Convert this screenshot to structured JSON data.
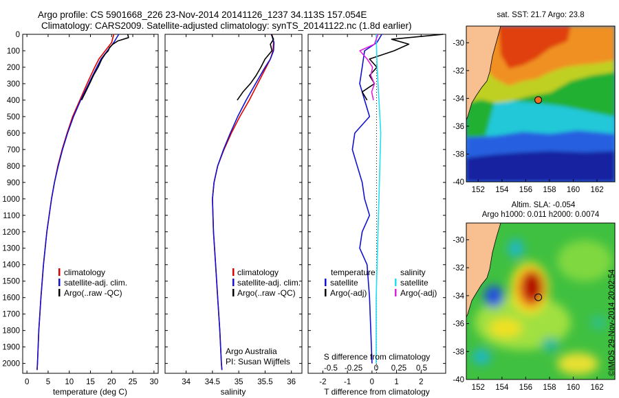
{
  "header": {
    "line1": "Argo profile: CS 5901668_226 23-Nov-2014 20141126_1237 34.113S 157.054E",
    "line2": "Climatology: CARS2009. Satellite-adjusted climatology: synTS_20141122.nc (1.8d earlier)"
  },
  "colors": {
    "climatology": "#e00000",
    "satellite": "#1010d0",
    "argo": "#000000",
    "sal_satellite": "#20e0f0",
    "sal_argo": "#e020e0",
    "land": "#f8c090"
  },
  "chart_data": [
    {
      "type": "line",
      "name": "temperature",
      "xlabel": "temperature (deg C)",
      "ylim": [
        0,
        2060
      ],
      "xlim": [
        -1,
        31
      ],
      "xticks": [
        0,
        5,
        10,
        15,
        20,
        25,
        30
      ],
      "yticks": [
        0,
        100,
        200,
        300,
        400,
        500,
        600,
        700,
        800,
        900,
        1000,
        1100,
        1200,
        1300,
        1400,
        1500,
        1600,
        1700,
        1800,
        1900,
        2000
      ],
      "legend": {
        "position": "lower-center",
        "entries": [
          "climatology",
          "satellite-adj. clim.",
          "Argo(..raw -QC)"
        ]
      },
      "series": [
        {
          "name": "climatology",
          "color": "#e00000",
          "depth": [
            0,
            50,
            100,
            150,
            200,
            300,
            400,
            500,
            600,
            700,
            800,
            900,
            1000,
            1200,
            1400,
            1600,
            1800,
            2000,
            2040
          ],
          "values": [
            20.5,
            20.0,
            18.5,
            17.0,
            16.0,
            14.2,
            12.5,
            10.8,
            9.5,
            8.3,
            7.3,
            6.5,
            5.8,
            4.7,
            3.9,
            3.3,
            2.8,
            2.5,
            2.4
          ]
        },
        {
          "name": "satellite-adj. clim.",
          "color": "#1010d0",
          "depth": [
            0,
            50,
            100,
            150,
            200,
            300,
            400,
            500,
            600,
            700,
            800,
            900,
            1000,
            1200,
            1400,
            1600,
            1800,
            2000,
            2040
          ],
          "values": [
            21.7,
            20.5,
            19.0,
            17.5,
            16.5,
            14.6,
            12.7,
            11.0,
            9.6,
            8.4,
            7.4,
            6.5,
            5.8,
            4.7,
            3.9,
            3.3,
            2.8,
            2.5,
            2.4
          ]
        },
        {
          "name": "Argo(..raw -QC)",
          "color": "#000000",
          "depth": [
            0,
            20,
            40,
            60,
            80,
            100,
            120,
            150,
            200,
            250,
            300,
            400
          ],
          "values": [
            23.8,
            24.0,
            21.5,
            20.3,
            19.5,
            19.2,
            18.5,
            17.7,
            16.8,
            15.7,
            14.8,
            12.9
          ]
        }
      ]
    },
    {
      "type": "line",
      "name": "salinity",
      "xlabel": "salinity",
      "ylim": [
        0,
        2060
      ],
      "xlim": [
        33.6,
        36.2
      ],
      "xticks": [
        34,
        34.5,
        35,
        35.5,
        36
      ],
      "legend": {
        "position": "lower-center",
        "entries": [
          "climatology",
          "satellite-adj. clim.",
          "Argo(..raw -QC)"
        ]
      },
      "annotations": [
        "Argo Australia",
        "PI: Susan Wijffels"
      ],
      "series": [
        {
          "name": "climatology",
          "color": "#e00000",
          "depth": [
            0,
            50,
            100,
            150,
            200,
            300,
            400,
            500,
            600,
            700,
            800,
            900,
            1000,
            1200,
            1400,
            1600,
            1800,
            2000,
            2040
          ],
          "values": [
            35.63,
            35.66,
            35.65,
            35.6,
            35.52,
            35.36,
            35.2,
            35.02,
            34.86,
            34.72,
            34.6,
            34.53,
            34.5,
            34.52,
            34.56,
            34.6,
            34.64,
            34.67,
            34.68
          ]
        },
        {
          "name": "satellite-adj. clim.",
          "color": "#1010d0",
          "depth": [
            0,
            50,
            100,
            150,
            200,
            300,
            400,
            500,
            600,
            700,
            800,
            900,
            1000,
            1200,
            1400,
            1600,
            1800,
            2000,
            2040
          ],
          "values": [
            35.62,
            35.67,
            35.66,
            35.6,
            35.5,
            35.32,
            35.14,
            34.98,
            34.84,
            34.71,
            34.6,
            34.53,
            34.5,
            34.52,
            34.56,
            34.6,
            34.64,
            34.67,
            34.68
          ]
        },
        {
          "name": "Argo(..raw -QC)",
          "color": "#000000",
          "depth": [
            0,
            30,
            60,
            100,
            150,
            200,
            250,
            300,
            350,
            400
          ],
          "values": [
            35.62,
            35.66,
            35.6,
            35.63,
            35.5,
            35.42,
            35.33,
            35.22,
            35.08,
            34.97
          ]
        }
      ]
    },
    {
      "type": "line",
      "name": "difference",
      "xlabel": "T difference from climatology",
      "top_label": "S difference from climatology",
      "ylim": [
        0,
        2060
      ],
      "xlim": [
        -2.6,
        3.0
      ],
      "xticks": [
        -2,
        -1,
        0,
        1,
        2
      ],
      "top_ticks": [
        -0.5,
        -0.25,
        0,
        0.25,
        0.5
      ],
      "top_tick_labels": [
        "-0.5",
        "-0.25",
        "0",
        "0.25",
        "0.5"
      ],
      "legend": {
        "position": "lower-center",
        "columns": [
          {
            "title": "temperature",
            "entries": [
              "satellite",
              "Argo(-adj)"
            ]
          },
          {
            "title": "salinity",
            "entries": [
              "satellite",
              "Argo(-adj)"
            ]
          }
        ]
      },
      "series": [
        {
          "name": "T satellite",
          "color": "#1010d0",
          "depth": [
            0,
            50,
            100,
            200,
            300,
            400,
            500,
            600,
            700,
            800,
            900,
            1000,
            1100,
            1200,
            1300,
            1400,
            1600,
            2000
          ],
          "values": [
            0.4,
            0.2,
            -0.3,
            -0.4,
            -0.5,
            -0.3,
            -0.1,
            -0.7,
            -0.8,
            -0.6,
            -0.4,
            -0.3,
            -0.1,
            -0.4,
            -0.5,
            -0.2,
            -0.1,
            0.0
          ]
        },
        {
          "name": "T Argo(-adj)",
          "color": "#000000",
          "depth": [
            0,
            30,
            60,
            100,
            150,
            200,
            250,
            300,
            350,
            400
          ],
          "values": [
            2.9,
            0.8,
            1.5,
            0.9,
            -0.1,
            0.2,
            -0.1,
            0.1,
            -0.4,
            -0.2
          ]
        },
        {
          "name": "S satellite",
          "color": "#20e0f0",
          "depth": [
            0,
            200,
            400,
            600,
            800,
            1000,
            1200,
            1400,
            1600,
            1800,
            2000
          ],
          "values": [
            0.0,
            0.01,
            0.03,
            0.05,
            0.04,
            0.03,
            0.02,
            0.01,
            0.0,
            0.0,
            0.0
          ]
        },
        {
          "name": "S Argo(-adj)",
          "color": "#e020e0",
          "depth": [
            0,
            30,
            60,
            100,
            150,
            200,
            250,
            300,
            350,
            400
          ],
          "values": [
            0.02,
            0.0,
            -0.02,
            -0.18,
            -0.1,
            -0.04,
            -0.06,
            -0.02,
            -0.05,
            -0.03
          ]
        }
      ]
    },
    {
      "type": "heatmap",
      "name": "sst-map",
      "title": "sat. SST: 21.7 Argo: 23.8",
      "xticks": [
        152,
        154,
        156,
        158,
        160,
        162
      ],
      "yticks": [
        -30,
        -32,
        -34,
        -36,
        -38,
        -40
      ],
      "xlim": [
        151,
        163.5
      ],
      "ylim": [
        -40,
        -28.8
      ],
      "marker": {
        "lon": 157.054,
        "lat": -34.113
      }
    },
    {
      "type": "heatmap",
      "name": "sla-map",
      "title_line1": "Altim. SLA: -0.054",
      "title_line2": "Argo h1000: 0.011 h2000: 0.0074",
      "xticks": [
        152,
        154,
        156,
        158,
        160,
        162
      ],
      "yticks": [
        -30,
        -32,
        -34,
        -36,
        -38,
        -40
      ],
      "xlim": [
        151,
        163.5
      ],
      "ylim": [
        -40,
        -28.8
      ],
      "marker": {
        "lon": 157.054,
        "lat": -34.113
      }
    }
  ],
  "credit": "©IMOS 29-Nov-2014 20:02:54"
}
